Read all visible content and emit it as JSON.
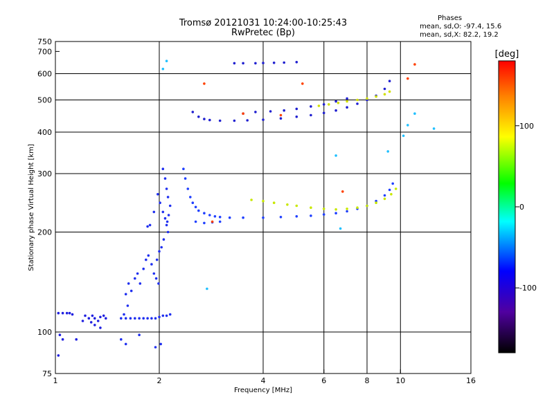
{
  "header": {
    "title_line1": "Tromsø 20121031 10:24:00-10:25:43",
    "title_line2": "RwPretec (Bp)",
    "phase_label": "Phases",
    "phase_o": "mean, sd,O: -97.4, 15.6",
    "phase_x": "mean, sd,X:  82.2, 19.2"
  },
  "chart_data": {
    "type": "scatter",
    "title": "Tromsø 20121031 10:24:00-10:25:43",
    "subtitle": "RwPretec (Bp)",
    "xlabel": "Frequency [MHz]",
    "ylabel": "Stationary phase Virtual Height [km]",
    "x_scale": "log",
    "y_scale": "log",
    "xlim": [
      1,
      16
    ],
    "ylim": [
      75,
      750
    ],
    "x_ticks": [
      1,
      2,
      4,
      6,
      8,
      10,
      16
    ],
    "y_ticks": [
      75,
      100,
      200,
      300,
      400,
      500,
      600,
      700,
      750
    ],
    "x_grid": [
      2,
      4,
      6,
      8,
      10
    ],
    "y_grid": [
      100,
      200,
      300,
      400,
      500,
      600
    ],
    "grid": true,
    "colorbar": {
      "label": "[deg]",
      "range": [
        -180,
        180
      ],
      "ticks": [
        -100,
        0,
        100
      ],
      "colormap": [
        "#000000",
        "#5000a0",
        "#0000ff",
        "#00ffff",
        "#00ff00",
        "#ffff00",
        "#ff8000",
        "#ff0000"
      ]
    },
    "series": [
      {
        "color": "#2020e0",
        "points": [
          [
            1.02,
            114
          ],
          [
            1.05,
            114
          ],
          [
            1.08,
            114
          ],
          [
            1.1,
            114
          ],
          [
            1.12,
            113
          ],
          [
            1.03,
            98
          ],
          [
            1.05,
            95
          ],
          [
            1.02,
            85
          ],
          [
            1.15,
            95
          ],
          [
            1.2,
            108
          ],
          [
            1.25,
            110
          ],
          [
            1.28,
            112
          ],
          [
            1.3,
            110
          ],
          [
            1.33,
            108
          ],
          [
            1.35,
            111
          ],
          [
            1.38,
            112
          ],
          [
            1.4,
            110
          ],
          [
            1.22,
            112
          ],
          [
            1.27,
            107
          ],
          [
            1.3,
            105
          ],
          [
            1.35,
            103
          ]
        ]
      },
      {
        "color": "#2030f0",
        "points": [
          [
            1.55,
            110
          ],
          [
            1.6,
            110
          ],
          [
            1.65,
            110
          ],
          [
            1.7,
            110
          ],
          [
            1.75,
            110
          ],
          [
            1.8,
            110
          ],
          [
            1.85,
            110
          ],
          [
            1.9,
            110
          ],
          [
            1.95,
            110
          ],
          [
            2.0,
            111
          ],
          [
            2.05,
            112
          ],
          [
            2.1,
            112
          ],
          [
            2.15,
            113
          ],
          [
            1.58,
            113
          ],
          [
            1.62,
            120
          ],
          [
            1.6,
            130
          ],
          [
            1.63,
            140
          ],
          [
            1.66,
            133
          ],
          [
            1.7,
            145
          ],
          [
            1.73,
            150
          ],
          [
            1.76,
            140
          ],
          [
            1.8,
            155
          ],
          [
            1.83,
            165
          ],
          [
            1.86,
            170
          ],
          [
            1.9,
            160
          ],
          [
            1.93,
            150
          ],
          [
            1.96,
            145
          ],
          [
            1.99,
            140
          ],
          [
            1.88,
            210
          ],
          [
            1.93,
            230
          ],
          [
            1.98,
            260
          ],
          [
            2.01,
            245
          ],
          [
            2.05,
            230
          ],
          [
            2.08,
            220
          ],
          [
            2.1,
            210
          ],
          [
            2.12,
            200
          ],
          [
            2.06,
            190
          ],
          [
            2.03,
            180
          ],
          [
            2.0,
            175
          ],
          [
            1.97,
            165
          ],
          [
            2.05,
            310
          ],
          [
            2.08,
            290
          ],
          [
            2.1,
            270
          ],
          [
            2.12,
            255
          ],
          [
            2.15,
            240
          ],
          [
            2.13,
            225
          ],
          [
            2.11,
            215
          ],
          [
            1.85,
            208
          ],
          [
            1.55,
            95
          ],
          [
            1.6,
            92
          ],
          [
            1.75,
            98
          ],
          [
            1.95,
            90
          ],
          [
            2.02,
            92
          ]
        ]
      },
      {
        "color": "#2040ff",
        "points": [
          [
            2.35,
            310
          ],
          [
            2.38,
            290
          ],
          [
            2.42,
            270
          ],
          [
            2.46,
            255
          ],
          [
            2.5,
            245
          ],
          [
            2.55,
            238
          ],
          [
            2.6,
            232
          ],
          [
            2.7,
            228
          ],
          [
            2.8,
            225
          ],
          [
            2.9,
            223
          ],
          [
            3.0,
            222
          ],
          [
            3.2,
            221
          ],
          [
            3.5,
            221
          ],
          [
            4.0,
            221
          ],
          [
            4.5,
            222
          ],
          [
            5.0,
            223
          ],
          [
            5.5,
            224
          ],
          [
            6.0,
            226
          ],
          [
            6.5,
            228
          ],
          [
            7.0,
            231
          ],
          [
            7.5,
            235
          ],
          [
            8.0,
            240
          ],
          [
            8.5,
            248
          ],
          [
            9.0,
            258
          ],
          [
            9.3,
            268
          ],
          [
            9.5,
            280
          ],
          [
            2.55,
            215
          ],
          [
            2.7,
            213
          ],
          [
            2.85,
            214
          ],
          [
            3.0,
            215
          ]
        ]
      },
      {
        "color": "#c8e800",
        "points": [
          [
            3.7,
            250
          ],
          [
            4.0,
            248
          ],
          [
            4.3,
            245
          ],
          [
            4.7,
            242
          ],
          [
            5.0,
            240
          ],
          [
            5.5,
            237
          ],
          [
            6.0,
            235
          ],
          [
            6.5,
            234
          ],
          [
            7.0,
            235
          ],
          [
            7.5,
            237
          ],
          [
            8.0,
            240
          ],
          [
            8.5,
            245
          ],
          [
            9.0,
            252
          ],
          [
            9.4,
            260
          ],
          [
            9.7,
            270
          ]
        ]
      },
      {
        "color": "#2020d0",
        "points": [
          [
            2.5,
            460
          ],
          [
            2.6,
            445
          ],
          [
            2.7,
            438
          ],
          [
            2.8,
            435
          ],
          [
            3.0,
            433
          ],
          [
            3.3,
            433
          ],
          [
            3.6,
            434
          ],
          [
            4.0,
            436
          ],
          [
            4.5,
            440
          ],
          [
            5.0,
            445
          ],
          [
            5.5,
            450
          ],
          [
            6.0,
            457
          ],
          [
            6.5,
            465
          ],
          [
            7.0,
            475
          ],
          [
            7.5,
            487
          ],
          [
            8.0,
            500
          ],
          [
            8.5,
            515
          ],
          [
            9.0,
            540
          ],
          [
            9.3,
            570
          ],
          [
            3.3,
            645
          ],
          [
            3.5,
            645
          ],
          [
            3.8,
            645
          ],
          [
            4.0,
            646
          ],
          [
            4.3,
            647
          ],
          [
            4.6,
            648
          ],
          [
            5.0,
            650
          ],
          [
            3.5,
            455
          ],
          [
            3.8,
            460
          ],
          [
            4.2,
            462
          ],
          [
            4.6,
            465
          ],
          [
            5.0,
            470
          ],
          [
            5.5,
            478
          ],
          [
            6.0,
            485
          ],
          [
            6.5,
            495
          ],
          [
            7.0,
            505
          ]
        ]
      },
      {
        "color": "#d0e000",
        "points": [
          [
            5.8,
            480
          ],
          [
            6.2,
            485
          ],
          [
            6.6,
            490
          ],
          [
            7.0,
            495
          ],
          [
            7.5,
            500
          ],
          [
            8.0,
            505
          ],
          [
            8.5,
            512
          ],
          [
            9.0,
            520
          ],
          [
            9.3,
            530
          ]
        ]
      },
      {
        "color": "#ff4000",
        "points": [
          [
            2.7,
            560
          ],
          [
            3.5,
            455
          ],
          [
            4.5,
            450
          ],
          [
            5.2,
            560
          ],
          [
            6.8,
            265
          ],
          [
            11,
            640
          ],
          [
            10.5,
            580
          ],
          [
            2.85,
            215
          ]
        ]
      },
      {
        "color": "#20c0ff",
        "points": [
          [
            2.05,
            620
          ],
          [
            2.1,
            655
          ],
          [
            2.75,
            135
          ],
          [
            6.5,
            340
          ],
          [
            6.7,
            205
          ],
          [
            9.2,
            350
          ],
          [
            10.2,
            390
          ],
          [
            10.5,
            420
          ],
          [
            12.5,
            410
          ],
          [
            11,
            455
          ]
        ]
      }
    ]
  }
}
